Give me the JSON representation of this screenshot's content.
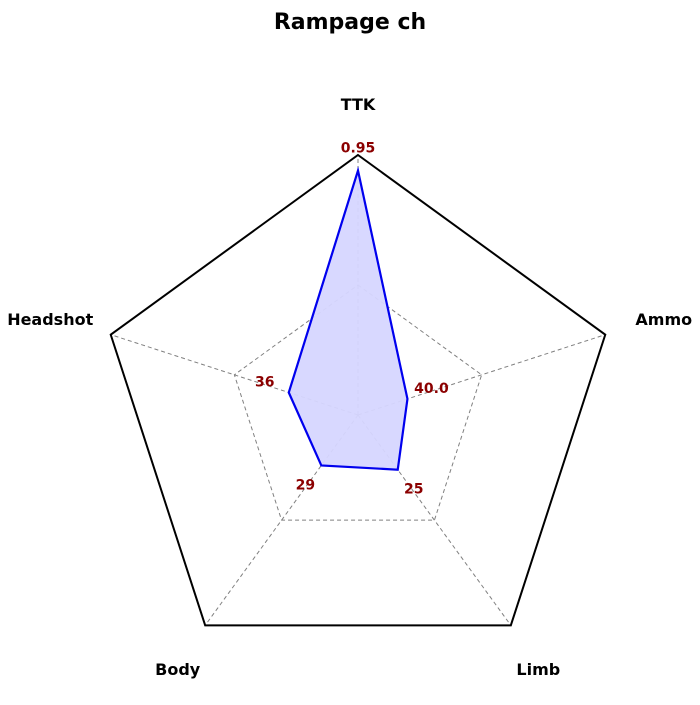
{
  "chart_data": {
    "type": "radar",
    "title": "Rampage ch",
    "axes": [
      "TTK",
      "Ammo",
      "Limb",
      "Body",
      "Headshot"
    ],
    "display_values": [
      "0.95",
      "40.0",
      "25",
      "29",
      "36"
    ],
    "normalized_values": [
      0.94,
      0.2,
      0.26,
      0.24,
      0.28
    ],
    "outer_color": "#000000",
    "grid_color": "#808080",
    "series_color": "#0000ee",
    "series_fill": "#d6d6ff",
    "value_label_color": "#8b0000"
  }
}
